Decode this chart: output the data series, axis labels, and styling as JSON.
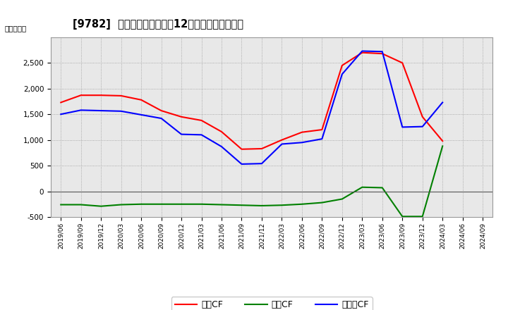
{
  "title": "[9782]  キャッシュフローの12か月移動合計の推移",
  "ylabel": "（百万円）",
  "dates": [
    "2019/06",
    "2019/09",
    "2019/12",
    "2020/03",
    "2020/06",
    "2020/09",
    "2020/12",
    "2021/03",
    "2021/06",
    "2021/09",
    "2021/12",
    "2022/03",
    "2022/06",
    "2022/09",
    "2022/12",
    "2023/03",
    "2023/06",
    "2023/09",
    "2023/12",
    "2024/03",
    "2024/06",
    "2024/09"
  ],
  "operating_cf": [
    1730,
    1870,
    1870,
    1860,
    1780,
    1570,
    1450,
    1380,
    1160,
    820,
    830,
    1000,
    1150,
    1200,
    2450,
    2700,
    2680,
    2500,
    1450,
    980,
    null,
    null
  ],
  "investing_cf": [
    -260,
    -260,
    -290,
    -260,
    -250,
    -250,
    -250,
    -250,
    -260,
    -270,
    -280,
    -270,
    -250,
    -220,
    -150,
    80,
    70,
    -490,
    -490,
    880,
    null,
    null
  ],
  "free_cf": [
    1500,
    1580,
    1570,
    1560,
    1490,
    1420,
    1110,
    1100,
    870,
    530,
    540,
    920,
    950,
    1020,
    2280,
    2730,
    2720,
    1250,
    1260,
    1730,
    null,
    null
  ],
  "operating_color": "#ff0000",
  "investing_color": "#008000",
  "free_color": "#0000ff",
  "ylim": [
    -500,
    3000
  ],
  "yticks": [
    -500,
    0,
    500,
    1000,
    1500,
    2000,
    2500
  ],
  "bg_color": "#ffffff",
  "plot_bg_color": "#e8e8e8",
  "grid_color": "#999999",
  "legend_labels": [
    "営業CF",
    "投資CF",
    "フリーCF"
  ]
}
